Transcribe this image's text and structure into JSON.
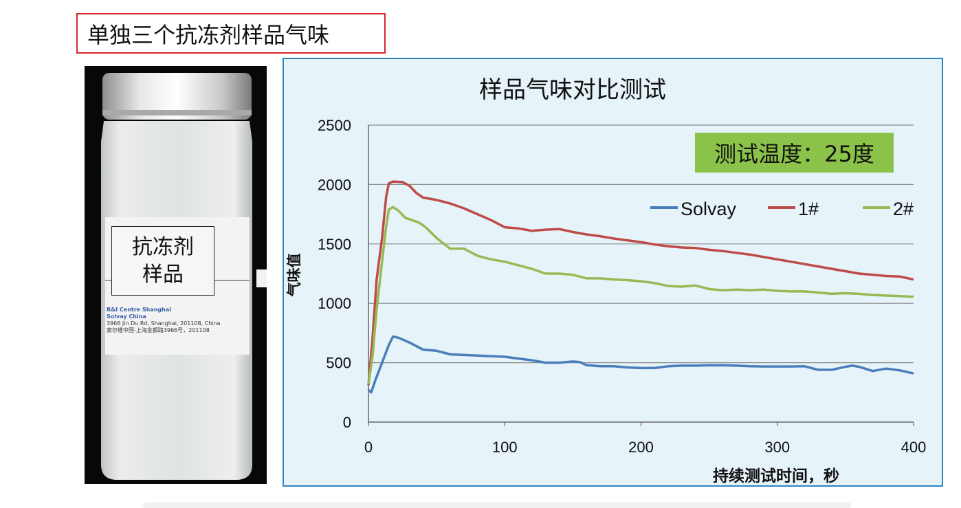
{
  "slide": {
    "title": "单独三个抗冻剂样品气味"
  },
  "photo": {
    "label_line1": "抗冻剂",
    "label_line2": "样品",
    "tag_line1": "R&I Centre Shanghai",
    "tag_line2": "Solvay China",
    "tag_line3": "3966 Jin Du Rd, Shanghai, 201108, China",
    "tag_line4": "索尔维中国-上海金都路3966号，201108"
  },
  "annotation": {
    "temperature": "测试温度：25度"
  },
  "chart_data": {
    "type": "line",
    "title": "样品气味对比测试",
    "xlabel": "持续测试时间，秒",
    "ylabel": "气味值",
    "xlim": [
      0,
      400
    ],
    "ylim": [
      0,
      2500
    ],
    "xticks": [
      0,
      100,
      200,
      300,
      400
    ],
    "yticks": [
      0,
      500,
      1000,
      1500,
      2000,
      2500
    ],
    "grid": true,
    "legend_position": "top-right",
    "series": [
      {
        "name": "Solvay",
        "color": "#4a7ebb",
        "x": [
          0,
          2,
          5,
          10,
          15,
          18,
          22,
          30,
          40,
          50,
          60,
          70,
          80,
          90,
          100,
          110,
          120,
          130,
          140,
          150,
          155,
          160,
          170,
          180,
          190,
          200,
          210,
          220,
          230,
          240,
          250,
          260,
          270,
          280,
          290,
          300,
          310,
          320,
          330,
          340,
          350,
          355,
          360,
          370,
          380,
          390,
          400
        ],
        "y": [
          270,
          250,
          350,
          500,
          650,
          720,
          710,
          670,
          610,
          600,
          570,
          565,
          560,
          555,
          550,
          535,
          520,
          500,
          500,
          510,
          505,
          480,
          470,
          470,
          460,
          455,
          455,
          470,
          475,
          475,
          478,
          478,
          475,
          470,
          468,
          468,
          468,
          470,
          440,
          440,
          465,
          475,
          465,
          430,
          450,
          435,
          410
        ]
      },
      {
        "name": "1#",
        "color": "#be4b48",
        "x": [
          0,
          3,
          6,
          10,
          13,
          15,
          18,
          25,
          30,
          35,
          40,
          50,
          60,
          70,
          80,
          90,
          100,
          110,
          120,
          130,
          140,
          150,
          160,
          170,
          180,
          190,
          200,
          210,
          220,
          230,
          240,
          250,
          260,
          270,
          280,
          290,
          300,
          310,
          320,
          330,
          340,
          350,
          360,
          370,
          380,
          390,
          400
        ],
        "y": [
          310,
          700,
          1200,
          1550,
          1900,
          2010,
          2025,
          2020,
          1990,
          1930,
          1890,
          1870,
          1840,
          1800,
          1750,
          1700,
          1640,
          1630,
          1610,
          1620,
          1625,
          1600,
          1580,
          1565,
          1545,
          1530,
          1515,
          1495,
          1480,
          1470,
          1465,
          1450,
          1440,
          1425,
          1410,
          1390,
          1370,
          1350,
          1330,
          1310,
          1290,
          1270,
          1250,
          1240,
          1230,
          1225,
          1200
        ]
      },
      {
        "name": "2#",
        "color": "#98b954",
        "x": [
          0,
          3,
          6,
          10,
          13,
          15,
          18,
          22,
          27,
          32,
          37,
          42,
          50,
          60,
          70,
          80,
          90,
          100,
          110,
          120,
          130,
          140,
          150,
          160,
          170,
          180,
          190,
          200,
          210,
          220,
          230,
          240,
          250,
          260,
          270,
          280,
          290,
          300,
          310,
          320,
          330,
          340,
          350,
          360,
          370,
          380,
          390,
          400
        ],
        "y": [
          320,
          550,
          950,
          1350,
          1650,
          1790,
          1810,
          1780,
          1720,
          1700,
          1680,
          1640,
          1550,
          1460,
          1460,
          1400,
          1370,
          1350,
          1320,
          1290,
          1250,
          1250,
          1240,
          1210,
          1210,
          1200,
          1195,
          1185,
          1170,
          1145,
          1140,
          1150,
          1120,
          1110,
          1115,
          1110,
          1115,
          1105,
          1100,
          1100,
          1090,
          1080,
          1085,
          1080,
          1070,
          1065,
          1060,
          1055
        ]
      }
    ]
  }
}
